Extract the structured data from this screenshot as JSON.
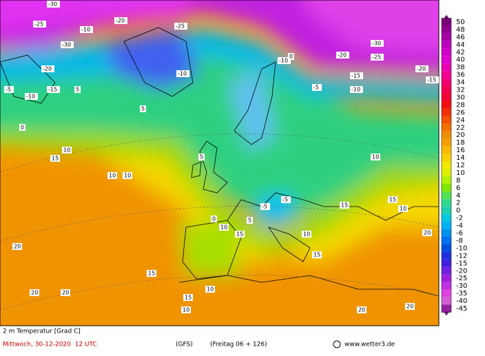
{
  "map": {
    "title": "2 m Temperatur [Grad C]",
    "date": "Mittwoch, 30-12-2020  12 UTC",
    "model": "(GFS)",
    "forecast": "(Freitag 06 + 126)",
    "credit": "www.wetter3.de",
    "legend": [
      50,
      48,
      46,
      44,
      42,
      40,
      38,
      36,
      34,
      32,
      30,
      28,
      26,
      24,
      22,
      20,
      18,
      16,
      14,
      12,
      10,
      8,
      6,
      4,
      2,
      0,
      -2,
      -4,
      -6,
      -8,
      -10,
      -12,
      -15,
      -20,
      -25,
      -30,
      -35,
      -40,
      -45
    ],
    "labels": [
      -30,
      -25,
      -30,
      -10,
      -20,
      -25,
      -10,
      -20,
      -5,
      -10,
      -15,
      5,
      0,
      5,
      10,
      15,
      10,
      10,
      20,
      20,
      20,
      15,
      15,
      10,
      5,
      0,
      -5,
      5,
      10,
      15,
      10,
      15,
      10,
      20,
      20,
      -10,
      -25,
      -20,
      -15,
      -30,
      -20,
      -15,
      -10,
      -5,
      0,
      -5,
      10,
      15,
      15,
      10,
      20
    ]
  }
}
